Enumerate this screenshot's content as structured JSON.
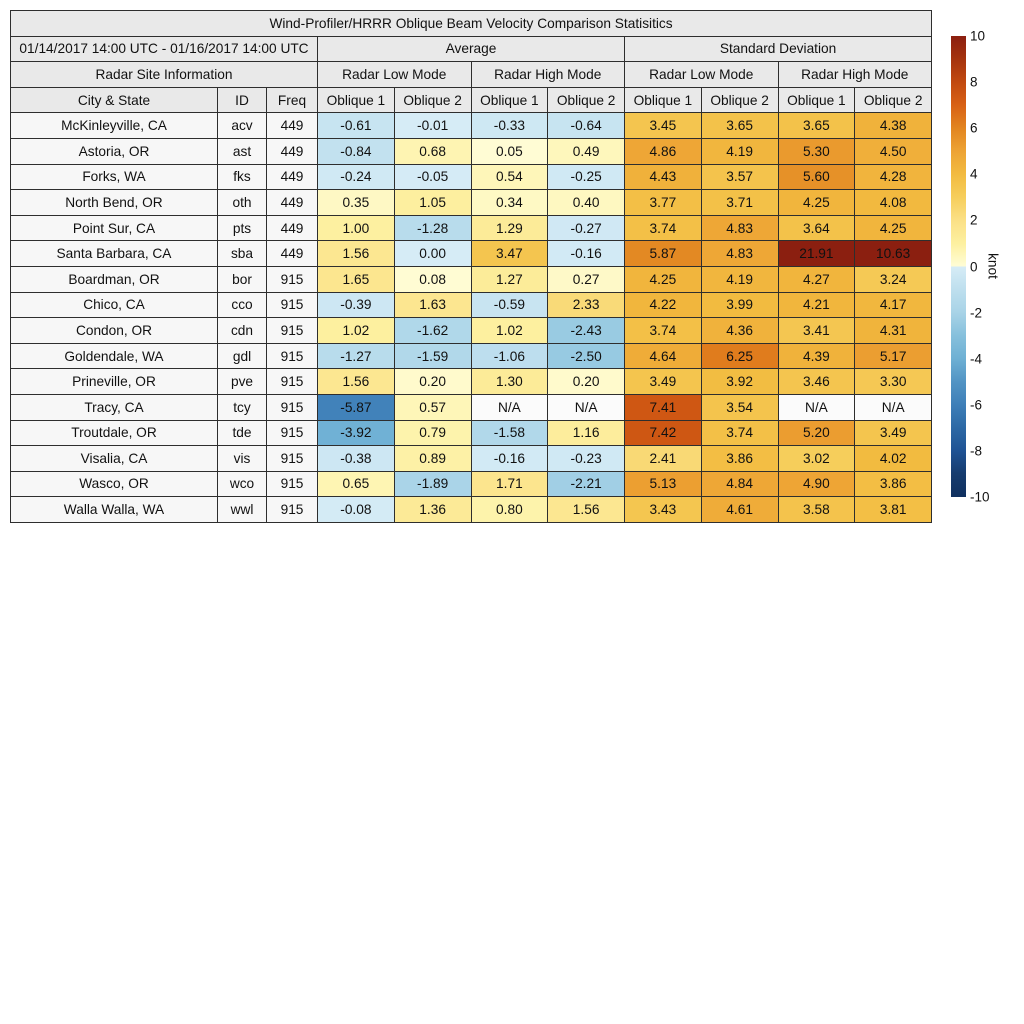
{
  "chart_data": {
    "type": "heatmap",
    "title": "Wind-Profiler/HRRR Oblique Beam Velocity Comparison Statisitics",
    "date_range": "01/14/2017 14:00 UTC - 01/16/2017 14:00 UTC",
    "groups": {
      "site_info": "Radar Site Information",
      "average": "Average",
      "std_dev": "Standard Deviation",
      "low_mode": "Radar Low Mode",
      "high_mode": "Radar High Mode"
    },
    "columns": {
      "city": "City & State",
      "id": "ID",
      "freq": "Freq",
      "oblique1": "Oblique 1",
      "oblique2": "Oblique 2"
    },
    "rows": [
      {
        "city": "McKinleyville, CA",
        "id": "acv",
        "freq": "449",
        "avg_low": [
          "-0.61",
          "-0.01"
        ],
        "avg_high": [
          "-0.33",
          "-0.64"
        ],
        "std_low": [
          "3.45",
          "3.65"
        ],
        "std_high": [
          "3.65",
          "4.38"
        ]
      },
      {
        "city": "Astoria, OR",
        "id": "ast",
        "freq": "449",
        "avg_low": [
          "-0.84",
          "0.68"
        ],
        "avg_high": [
          "0.05",
          "0.49"
        ],
        "std_low": [
          "4.86",
          "4.19"
        ],
        "std_high": [
          "5.30",
          "4.50"
        ]
      },
      {
        "city": "Forks, WA",
        "id": "fks",
        "freq": "449",
        "avg_low": [
          "-0.24",
          "-0.05"
        ],
        "avg_high": [
          "0.54",
          "-0.25"
        ],
        "std_low": [
          "4.43",
          "3.57"
        ],
        "std_high": [
          "5.60",
          "4.28"
        ]
      },
      {
        "city": "North Bend, OR",
        "id": "oth",
        "freq": "449",
        "avg_low": [
          "0.35",
          "1.05"
        ],
        "avg_high": [
          "0.34",
          "0.40"
        ],
        "std_low": [
          "3.77",
          "3.71"
        ],
        "std_high": [
          "4.25",
          "4.08"
        ]
      },
      {
        "city": "Point Sur, CA",
        "id": "pts",
        "freq": "449",
        "avg_low": [
          "1.00",
          "-1.28"
        ],
        "avg_high": [
          "1.29",
          "-0.27"
        ],
        "std_low": [
          "3.74",
          "4.83"
        ],
        "std_high": [
          "3.64",
          "4.25"
        ]
      },
      {
        "city": "Santa Barbara, CA",
        "id": "sba",
        "freq": "449",
        "avg_low": [
          "1.56",
          "0.00"
        ],
        "avg_high": [
          "3.47",
          "-0.16"
        ],
        "std_low": [
          "5.87",
          "4.83"
        ],
        "std_high": [
          "21.91",
          "10.63"
        ]
      },
      {
        "city": "Boardman, OR",
        "id": "bor",
        "freq": "915",
        "avg_low": [
          "1.65",
          "0.08"
        ],
        "avg_high": [
          "1.27",
          "0.27"
        ],
        "std_low": [
          "4.25",
          "4.19"
        ],
        "std_high": [
          "4.27",
          "3.24"
        ]
      },
      {
        "city": "Chico, CA",
        "id": "cco",
        "freq": "915",
        "avg_low": [
          "-0.39",
          "1.63"
        ],
        "avg_high": [
          "-0.59",
          "2.33"
        ],
        "std_low": [
          "4.22",
          "3.99"
        ],
        "std_high": [
          "4.21",
          "4.17"
        ]
      },
      {
        "city": "Condon, OR",
        "id": "cdn",
        "freq": "915",
        "avg_low": [
          "1.02",
          "-1.62"
        ],
        "avg_high": [
          "1.02",
          "-2.43"
        ],
        "std_low": [
          "3.74",
          "4.36"
        ],
        "std_high": [
          "3.41",
          "4.31"
        ]
      },
      {
        "city": "Goldendale, WA",
        "id": "gdl",
        "freq": "915",
        "avg_low": [
          "-1.27",
          "-1.59"
        ],
        "avg_high": [
          "-1.06",
          "-2.50"
        ],
        "std_low": [
          "4.64",
          "6.25"
        ],
        "std_high": [
          "4.39",
          "5.17"
        ]
      },
      {
        "city": "Prineville, OR",
        "id": "pve",
        "freq": "915",
        "avg_low": [
          "1.56",
          "0.20"
        ],
        "avg_high": [
          "1.30",
          "0.20"
        ],
        "std_low": [
          "3.49",
          "3.92"
        ],
        "std_high": [
          "3.46",
          "3.30"
        ]
      },
      {
        "city": "Tracy, CA",
        "id": "tcy",
        "freq": "915",
        "avg_low": [
          "-5.87",
          "0.57"
        ],
        "avg_high": [
          "N/A",
          "N/A"
        ],
        "std_low": [
          "7.41",
          "3.54"
        ],
        "std_high": [
          "N/A",
          "N/A"
        ]
      },
      {
        "city": "Troutdale, OR",
        "id": "tde",
        "freq": "915",
        "avg_low": [
          "-3.92",
          "0.79"
        ],
        "avg_high": [
          "-1.58",
          "1.16"
        ],
        "std_low": [
          "7.42",
          "3.74"
        ],
        "std_high": [
          "5.20",
          "3.49"
        ]
      },
      {
        "city": "Visalia, CA",
        "id": "vis",
        "freq": "915",
        "avg_low": [
          "-0.38",
          "0.89"
        ],
        "avg_high": [
          "-0.16",
          "-0.23"
        ],
        "std_low": [
          "2.41",
          "3.86"
        ],
        "std_high": [
          "3.02",
          "4.02"
        ]
      },
      {
        "city": "Wasco, OR",
        "id": "wco",
        "freq": "915",
        "avg_low": [
          "0.65",
          "-1.89"
        ],
        "avg_high": [
          "1.71",
          "-2.21"
        ],
        "std_low": [
          "5.13",
          "4.84"
        ],
        "std_high": [
          "4.90",
          "3.86"
        ]
      },
      {
        "city": "Walla Walla, WA",
        "id": "wwl",
        "freq": "915",
        "avg_low": [
          "-0.08",
          "1.36"
        ],
        "avg_high": [
          "0.80",
          "1.56"
        ],
        "std_low": [
          "3.43",
          "4.61"
        ],
        "std_high": [
          "3.58",
          "3.81"
        ]
      }
    ],
    "colorbar": {
      "label": "knot",
      "min": -10,
      "max": 10,
      "ticks": [
        "10",
        "8",
        "6",
        "4",
        "2",
        "0",
        "-2",
        "-4",
        "-6",
        "-8",
        "-10"
      ],
      "positive_colors": [
        "#fffdd7",
        "#fdf0a0",
        "#fbe086",
        "#f6ce5c",
        "#f2bb40",
        "#eda334",
        "#e28520",
        "#d86115",
        "#c14910",
        "#a5330e",
        "#8b1f10"
      ],
      "negative_colors": [
        "#d6ecf6",
        "#bedfee",
        "#a8d3e7",
        "#86c0dc",
        "#6eb0d4",
        "#5294c4",
        "#3e7fb8",
        "#2d69a5",
        "#1f5394",
        "#163c6e",
        "#10305f"
      ],
      "na_color": "#fbfbfb"
    }
  }
}
